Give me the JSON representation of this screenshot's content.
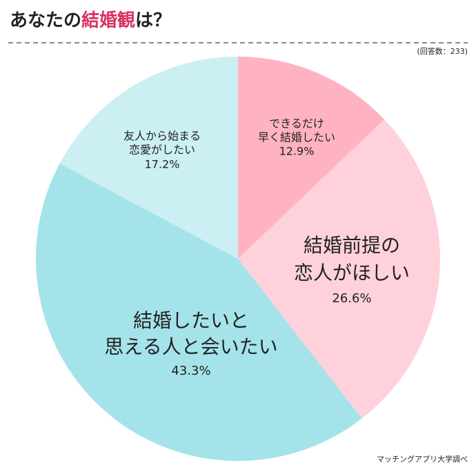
{
  "chart_data": {
    "type": "pie",
    "title": [
      "あなたの",
      "結婚観",
      "は？"
    ],
    "title_colors": [
      "#222222",
      "#d8325f",
      "#222222"
    ],
    "subtitle": "(回答数：233)",
    "source": "マッチングアプリ大学調べ",
    "labels": [
      [
        "できるだけ",
        "早く結婚したい"
      ],
      [
        "結婚前提の",
        "恋人がほしい"
      ],
      [
        "結婚したいと",
        "思える人と会いたい"
      ],
      [
        "友人から始まる",
        "恋愛がしたい"
      ]
    ],
    "values": [
      12.9,
      26.6,
      43.3,
      17.2
    ],
    "value_labels": [
      "12.9%",
      "26.6%",
      "43.3%",
      "17.2%"
    ],
    "colors": [
      "#ffb3c2",
      "#ffd1db",
      "#a4e3ea",
      "#cbeff3"
    ]
  }
}
